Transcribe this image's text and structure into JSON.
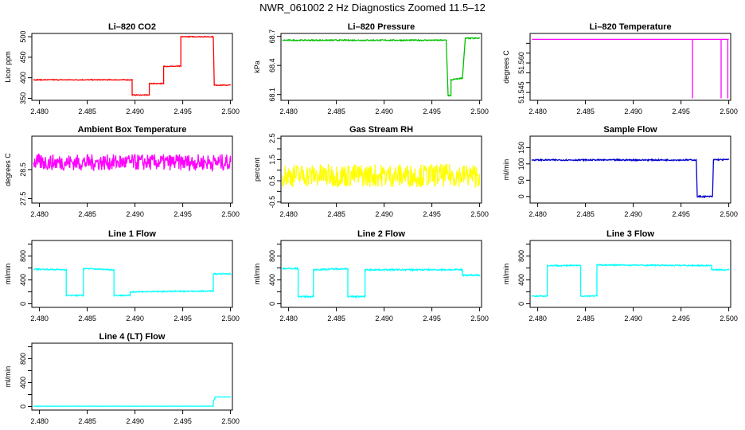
{
  "figure_title": "NWR_061002  2 Hz Diagnostics Zoomed 11.5–12",
  "chart_data": [
    {
      "type": "line",
      "title": "Li–820 CO2",
      "ylabel": "Licor ppm",
      "color": "#ff0000",
      "xlim": [
        2.4792,
        2.5002
      ],
      "ylim": [
        345,
        508
      ],
      "xticks": [
        "2.480",
        "2.485",
        "2.490",
        "2.495",
        "2.500"
      ],
      "xtick_values": [
        2.48,
        2.485,
        2.49,
        2.495,
        2.5
      ],
      "yticks": [
        "350",
        "400",
        "450",
        "500"
      ],
      "ytick_values": [
        350,
        400,
        450,
        500
      ],
      "noise": 1,
      "series": [
        {
          "x": [
            2.4794,
            2.4897,
            2.4897,
            2.4915,
            2.4915,
            2.493,
            2.493,
            2.4948,
            2.4948,
            2.4982,
            2.4983,
            2.5
          ],
          "values": [
            395,
            395,
            358,
            358,
            386,
            386,
            428,
            428,
            500,
            500,
            382,
            382
          ]
        }
      ]
    },
    {
      "type": "line",
      "title": "Li–820 Pressure",
      "ylabel": "kPa",
      "color": "#00c000",
      "xlim": [
        2.4792,
        2.5002
      ],
      "ylim": [
        68.04,
        68.73
      ],
      "xticks": [
        "2.480",
        "2.485",
        "2.490",
        "2.495",
        "2.500"
      ],
      "xtick_values": [
        2.48,
        2.485,
        2.49,
        2.495,
        2.5
      ],
      "yticks": [
        "68.1",
        "68.4",
        "68.7"
      ],
      "ytick_values": [
        68.1,
        68.4,
        68.7
      ],
      "noise": 0.006,
      "series": [
        {
          "x": [
            2.4794,
            2.4965,
            2.4967,
            2.497,
            2.497,
            2.4982,
            2.4985,
            2.5
          ],
          "values": [
            68.66,
            68.66,
            68.09,
            68.09,
            68.25,
            68.27,
            68.68,
            68.68
          ]
        }
      ]
    },
    {
      "type": "line",
      "title": "Li–820 Temperature",
      "ylabel": "degrees C",
      "color": "#ff00ff",
      "xlim": [
        2.4792,
        2.5002
      ],
      "ylim": [
        51.541,
        51.575
      ],
      "xticks": [
        "2.480",
        "2.485",
        "2.490",
        "2.495",
        "2.500"
      ],
      "xtick_values": [
        2.48,
        2.485,
        2.49,
        2.495,
        2.5
      ],
      "yticks": [
        "51.545",
        "51.560"
      ],
      "ytick_values": [
        51.545,
        51.56
      ],
      "extra_yticks": [
        "51.550",
        "51.555",
        "51.565",
        "51.570"
      ],
      "extra_ytick_values": [
        51.55,
        51.555,
        51.565,
        51.57
      ],
      "noise": 0,
      "series": [
        {
          "x": [
            2.4794,
            2.4962,
            2.4962,
            2.4962,
            2.4962,
            2.4992,
            2.4992,
            2.4992,
            2.4992,
            2.4999,
            2.4999,
            2.4999,
            2.4999,
            2.5
          ],
          "values": [
            51.572,
            51.572,
            51.542,
            51.542,
            51.572,
            51.572,
            51.542,
            51.542,
            51.572,
            51.572,
            51.542,
            51.542,
            51.572,
            51.572
          ]
        }
      ]
    },
    {
      "type": "line",
      "title": "Ambient Box Temperature",
      "ylabel": "degrees C",
      "color": "#ff00ff",
      "xlim": [
        2.4792,
        2.5002
      ],
      "ylim": [
        27.35,
        29.65
      ],
      "xticks": [
        "2.480",
        "2.485",
        "2.490",
        "2.495",
        "2.500"
      ],
      "xtick_values": [
        2.48,
        2.485,
        2.49,
        2.495,
        2.5
      ],
      "yticks": [
        "27.5",
        "28.5"
      ],
      "ytick_values": [
        27.5,
        28.5
      ],
      "noise": 0.28,
      "series": [
        {
          "x": [
            2.4794,
            2.5
          ],
          "values": [
            28.75,
            28.75
          ]
        }
      ]
    },
    {
      "type": "line",
      "title": "Gas Stream RH",
      "ylabel": "percent",
      "color": "#ffff00",
      "xlim": [
        2.4792,
        2.5002
      ],
      "ylim": [
        -0.55,
        2.6
      ],
      "xticks": [
        "2.480",
        "2.485",
        "2.490",
        "2.495",
        "2.500"
      ],
      "xtick_values": [
        2.48,
        2.485,
        2.49,
        2.495,
        2.5
      ],
      "yticks": [
        "-0.5",
        "0.5",
        "1.5",
        "2.5"
      ],
      "ytick_values": [
        -0.5,
        0.5,
        1.5,
        2.5
      ],
      "extra_yticks": [
        "0.0",
        "1.0",
        "2.0"
      ],
      "extra_ytick_values": [
        0.0,
        1.0,
        2.0
      ],
      "noise": 0.55,
      "series": [
        {
          "x": [
            2.4794,
            2.5
          ],
          "values": [
            0.75,
            0.75
          ]
        }
      ]
    },
    {
      "type": "line",
      "title": "Sample Flow",
      "ylabel": "ml/min",
      "color": "#0000cc",
      "xlim": [
        2.4792,
        2.5002
      ],
      "ylim": [
        -20,
        185
      ],
      "xticks": [
        "2.480",
        "2.485",
        "2.490",
        "2.495",
        "2.500"
      ],
      "xtick_values": [
        2.48,
        2.485,
        2.49,
        2.495,
        2.5
      ],
      "yticks": [
        "0",
        "50",
        "100",
        "150"
      ],
      "ytick_values": [
        0,
        50,
        100,
        150
      ],
      "noise": 2,
      "series": [
        {
          "x": [
            2.4794,
            2.4966,
            2.4967,
            2.4983,
            2.4984,
            2.5
          ],
          "values": [
            112,
            112,
            0,
            0,
            113,
            113
          ]
        }
      ]
    },
    {
      "type": "line",
      "title": "Line 1 Flow",
      "ylabel": "ml/min",
      "color": "#00ffff",
      "xlim": [
        2.4792,
        2.5002
      ],
      "ylim": [
        -60,
        1060
      ],
      "xticks": [
        "2.480",
        "2.485",
        "2.490",
        "2.495",
        "2.500"
      ],
      "xtick_values": [
        2.48,
        2.485,
        2.49,
        2.495,
        2.5
      ],
      "yticks": [
        "0",
        "400",
        "800"
      ],
      "ytick_values": [
        0,
        400,
        800
      ],
      "extra_yticks": [
        "200",
        "600",
        "1000"
      ],
      "extra_ytick_values": [
        200,
        600,
        1000
      ],
      "noise": 10,
      "series": [
        {
          "x": [
            2.4794,
            2.4828,
            2.4828,
            2.4846,
            2.4846,
            2.4878,
            2.4878,
            2.4895,
            2.4895,
            2.4982,
            2.4982,
            2.5
          ],
          "values": [
            580,
            570,
            140,
            140,
            590,
            570,
            140,
            140,
            200,
            215,
            500,
            500
          ]
        }
      ]
    },
    {
      "type": "line",
      "title": "Line 2 Flow",
      "ylabel": "ml/min",
      "color": "#00ffff",
      "xlim": [
        2.4792,
        2.5002
      ],
      "ylim": [
        -60,
        1060
      ],
      "xticks": [
        "2.480",
        "2.485",
        "2.490",
        "2.495",
        "2.500"
      ],
      "xtick_values": [
        2.48,
        2.485,
        2.49,
        2.495,
        2.5
      ],
      "yticks": [
        "0",
        "400",
        "800"
      ],
      "ytick_values": [
        0,
        400,
        800
      ],
      "extra_yticks": [
        "200",
        "600",
        "1000"
      ],
      "extra_ytick_values": [
        200,
        600,
        1000
      ],
      "noise": 12,
      "series": [
        {
          "x": [
            2.4794,
            2.481,
            2.481,
            2.4826,
            2.4826,
            2.4862,
            2.4862,
            2.488,
            2.488,
            2.4982,
            2.4982,
            2.5
          ],
          "values": [
            590,
            590,
            120,
            120,
            570,
            590,
            120,
            120,
            570,
            570,
            480,
            480
          ]
        }
      ]
    },
    {
      "type": "line",
      "title": "Line 3 Flow",
      "ylabel": "ml/min",
      "color": "#00ffff",
      "xlim": [
        2.4792,
        2.5002
      ],
      "ylim": [
        -60,
        1060
      ],
      "xticks": [
        "2.480",
        "2.485",
        "2.490",
        "2.495",
        "2.500"
      ],
      "xtick_values": [
        2.48,
        2.485,
        2.49,
        2.495,
        2.5
      ],
      "yticks": [
        "0",
        "400",
        "800"
      ],
      "ytick_values": [
        0,
        400,
        800
      ],
      "extra_yticks": [
        "200",
        "600",
        "1000"
      ],
      "extra_ytick_values": [
        200,
        600,
        1000
      ],
      "noise": 10,
      "series": [
        {
          "x": [
            2.4794,
            2.481,
            2.481,
            2.4845,
            2.4845,
            2.4862,
            2.4862,
            2.4982,
            2.4982,
            2.5
          ],
          "values": [
            130,
            130,
            640,
            640,
            130,
            130,
            650,
            640,
            570,
            570
          ]
        }
      ]
    },
    {
      "type": "line",
      "title": "Line 4 (LT) Flow",
      "ylabel": "ml/min",
      "color": "#00ffff",
      "xlim": [
        2.4792,
        2.5002
      ],
      "ylim": [
        -60,
        1060
      ],
      "xticks": [
        "2.480",
        "2.485",
        "2.490",
        "2.495",
        "2.500"
      ],
      "xtick_values": [
        2.48,
        2.485,
        2.49,
        2.495,
        2.5
      ],
      "yticks": [
        "0",
        "400",
        "800"
      ],
      "ytick_values": [
        0,
        400,
        800
      ],
      "extra_yticks": [
        "200",
        "600",
        "1000"
      ],
      "extra_ytick_values": [
        200,
        600,
        1000
      ],
      "noise": 2,
      "series": [
        {
          "x": [
            2.4794,
            2.4982,
            2.4982,
            2.4984,
            2.5
          ],
          "values": [
            5,
            5,
            80,
            160,
            160
          ]
        }
      ]
    }
  ]
}
